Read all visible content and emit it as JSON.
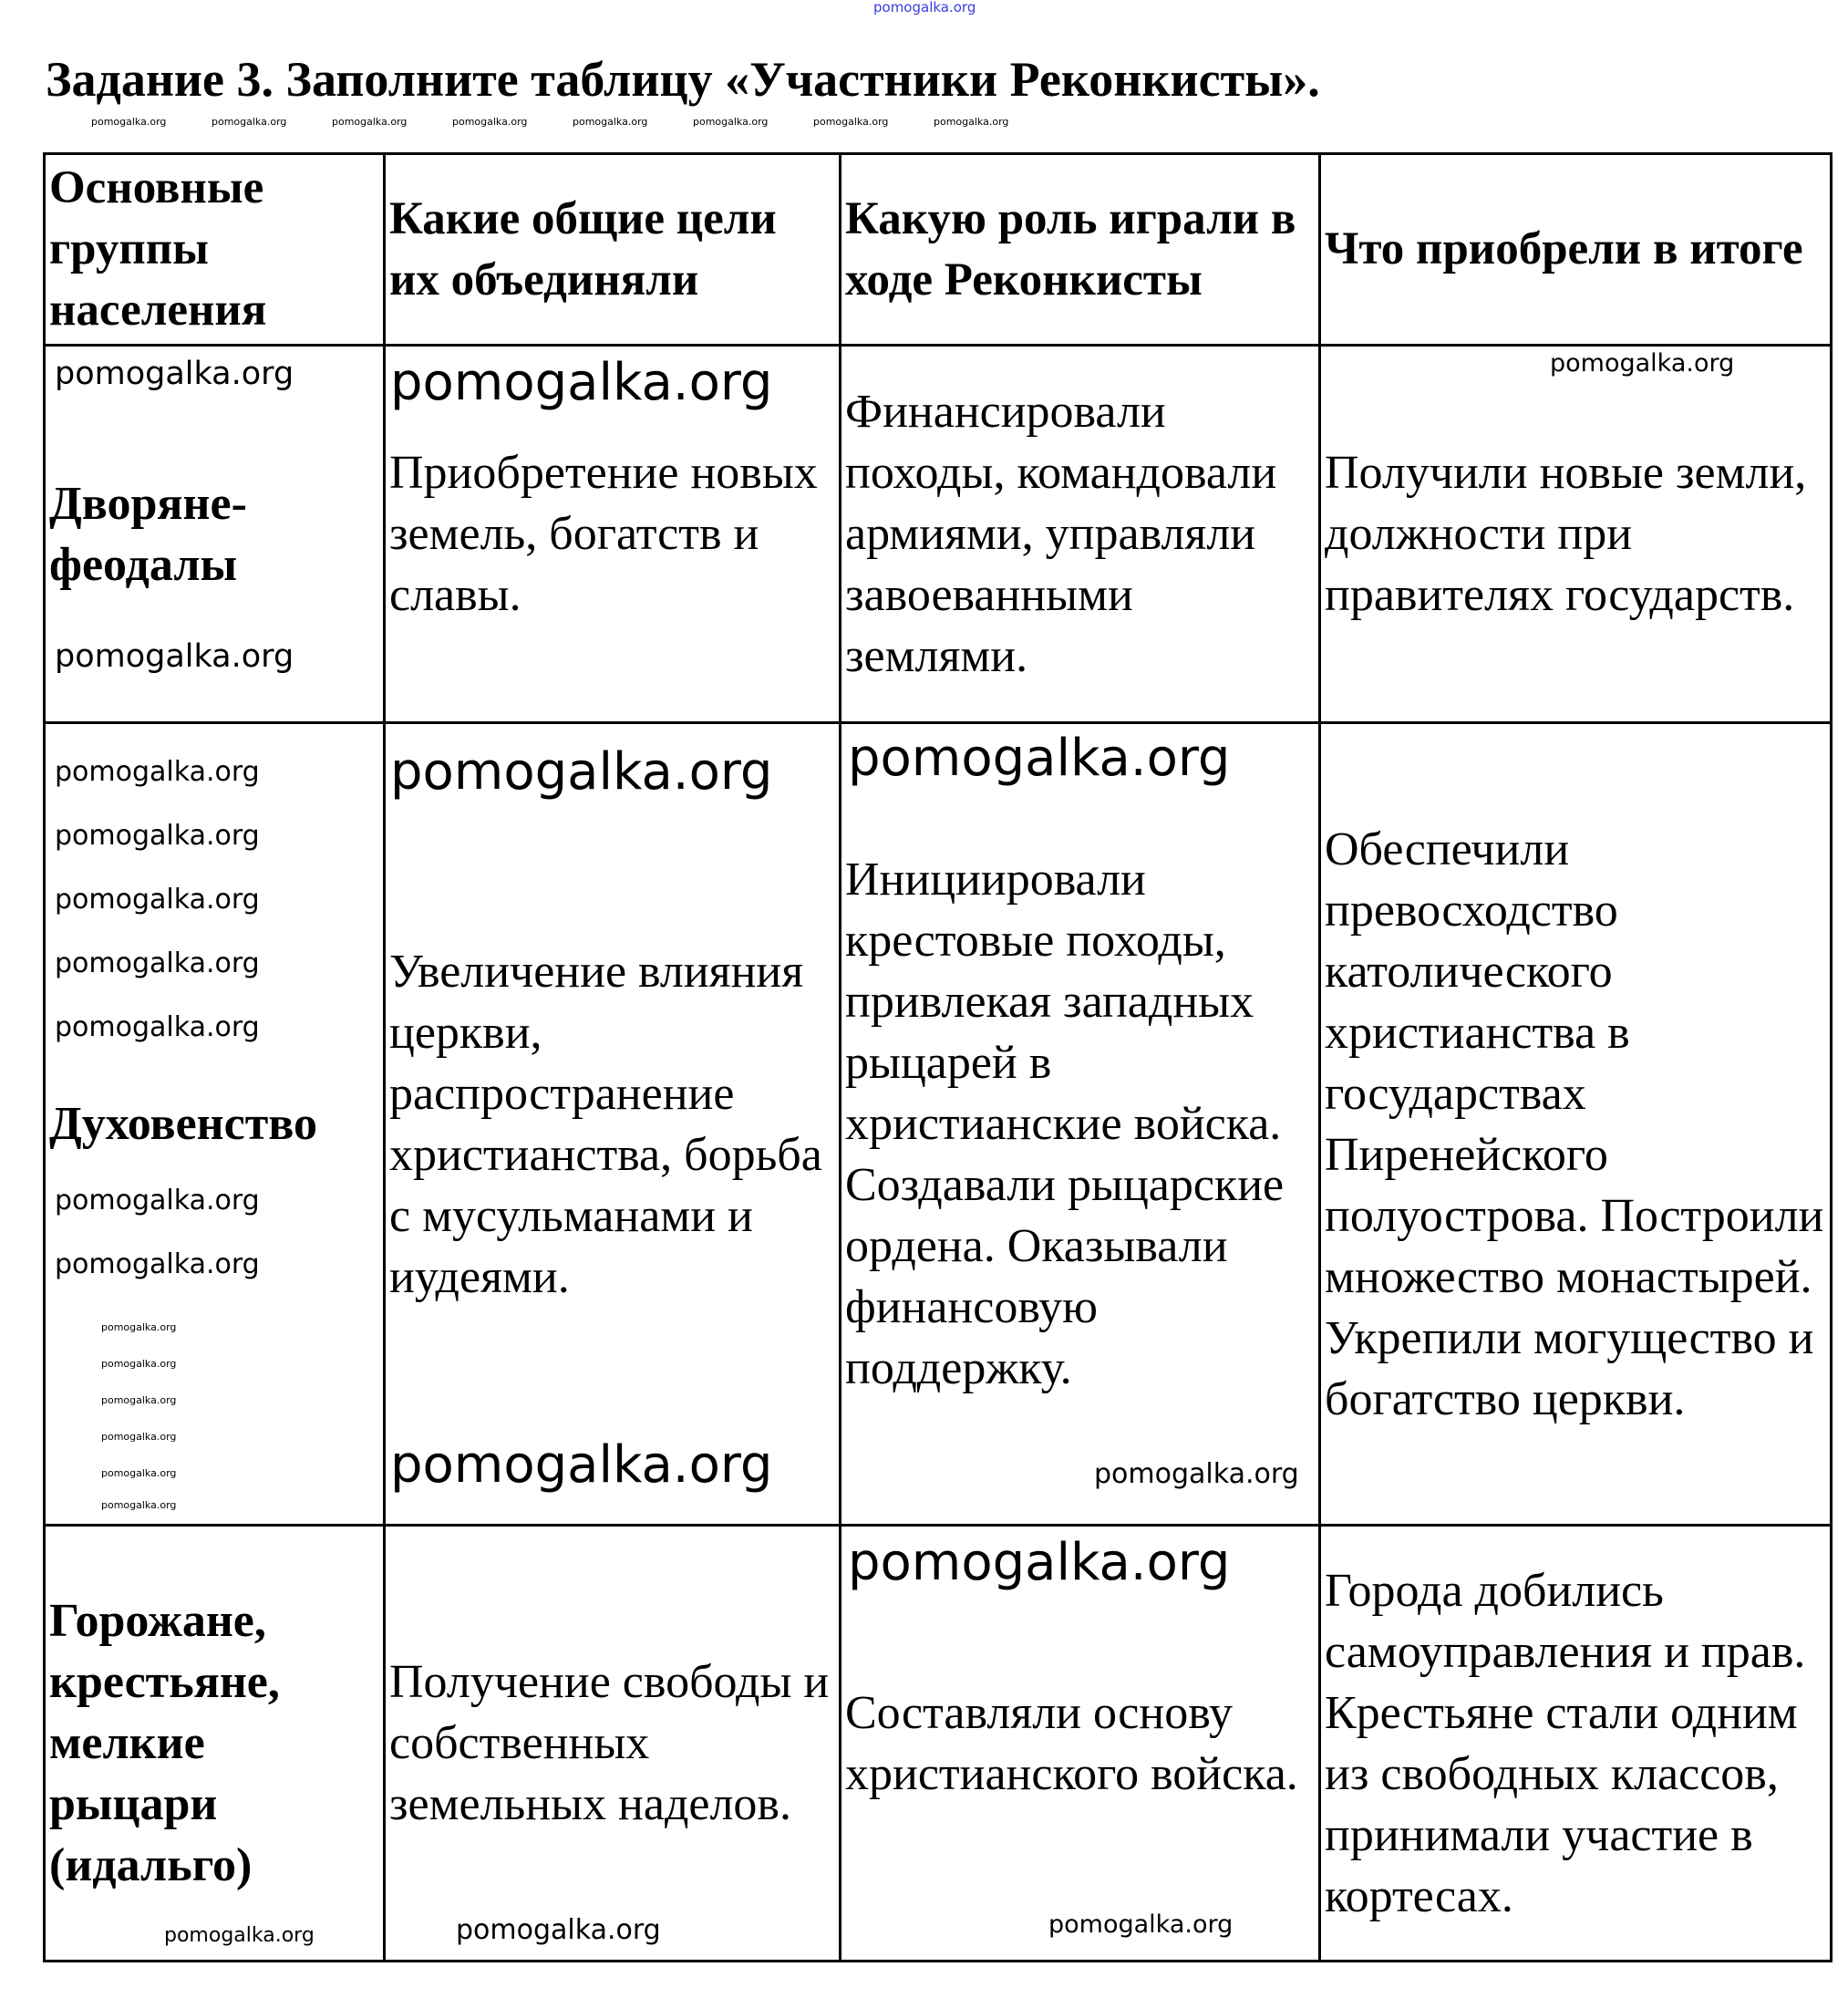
{
  "watermark": "pomogalka.org",
  "title": "Задание 3. Заполните таблицу «Участники Реконкисты».",
  "table": {
    "headers": [
      "Основные группы населения",
      "Какие общие цели их объединяли",
      "Какую роль играли в ходе Реконкисты",
      "Что приобрели в итоге"
    ],
    "rows": [
      [
        "Дворяне-феодалы",
        "Приобретение новых земель, богатств и славы.",
        "Финансировали походы, командовали армиями, управляли завоеванными землями.",
        "Получили новые земли, должности при правителях государств."
      ],
      [
        "Духовенство",
        "Увеличение влияния церкви, распространение христианства, борьба с мусульманами и иудеями.",
        "Инициировали крестовые походы, привлекая западных рыцарей в христианские войска. Создавали рыцарские ордена. Оказывали финансовую поддержку.",
        "Обеспечили превосходство католического христианства в государствах Пиренейского полуострова. Построили множество монастырей. Укрепили могущество и богатство церкви."
      ],
      [
        "Горожане, крестьяне, мелкие рыцари (идальго)",
        "Получение свободы и собственных земельных наделов.",
        "Составляли основу христианского войска.",
        "Города добились самоуправления и прав. Крестьяне стали одним из свободных классов, принимали участие в кортесах."
      ]
    ]
  }
}
